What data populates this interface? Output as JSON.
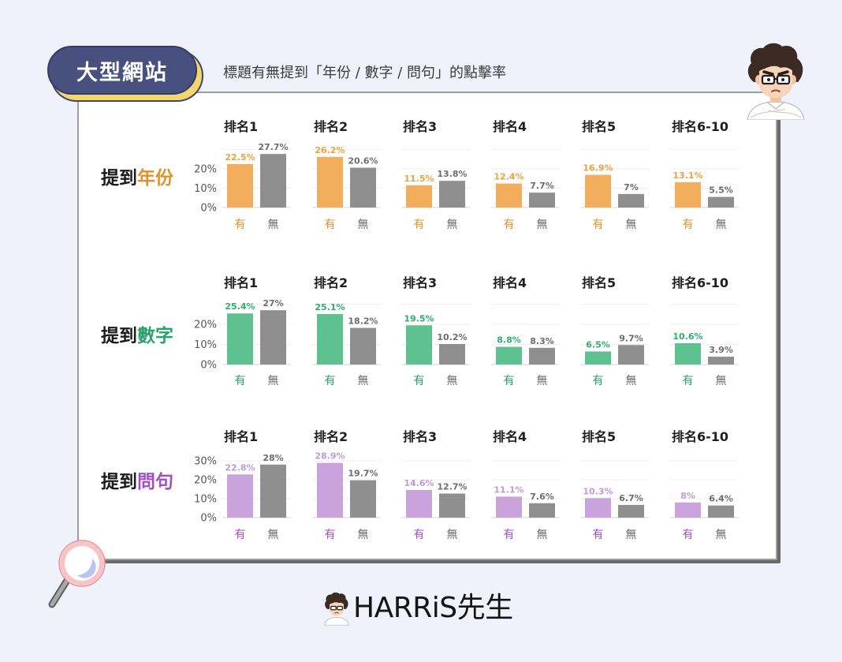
{
  "badge": {
    "text": "大型網站"
  },
  "subtitle": "標題有無提到「年份 / 數字 / 問句」的點擊率",
  "logo": {
    "text": "HARRiS先生"
  },
  "colors": {
    "background": "#f0f2fb",
    "badge": "#47507f",
    "badge_shadow": "#f4d66c",
    "no_bar": "#8f8f8f",
    "no_value_label": "#6d6d6d",
    "no_axis_label": "#6b6b6b"
  },
  "icons": {
    "avatar": "avatar-illustration",
    "magnifier": "magnifying-glass-icon"
  },
  "chart_data": [
    {
      "type": "bar",
      "row_label": {
        "prefix": "提到",
        "topic": "年份"
      },
      "accent": "#e0922b",
      "bar_color": "#f2ae5c",
      "value_label_color": "#eba13f",
      "unit": "%",
      "ylim": [
        0,
        30
      ],
      "yticks": [
        0,
        10,
        20
      ],
      "grid": true,
      "groups": [
        "排名1",
        "排名2",
        "排名3",
        "排名4",
        "排名5",
        "排名6-10"
      ],
      "series": [
        {
          "name": "有",
          "values": [
            22.5,
            26.2,
            11.5,
            12.4,
            16.9,
            13.1
          ]
        },
        {
          "name": "無",
          "values": [
            27.7,
            20.6,
            13.8,
            7.7,
            7,
            5.5
          ]
        }
      ]
    },
    {
      "type": "bar",
      "row_label": {
        "prefix": "提到",
        "topic": "數字"
      },
      "accent": "#2aa36a",
      "bar_color": "#5ec290",
      "value_label_color": "#2fae70",
      "unit": "%",
      "ylim": [
        0,
        30
      ],
      "yticks": [
        0,
        10,
        20
      ],
      "grid": true,
      "groups": [
        "排名1",
        "排名2",
        "排名3",
        "排名4",
        "排名5",
        "排名6-10"
      ],
      "series": [
        {
          "name": "有",
          "values": [
            25.4,
            25.1,
            19.5,
            8.8,
            6.5,
            10.6
          ]
        },
        {
          "name": "無",
          "values": [
            27,
            18.2,
            10.2,
            8.3,
            9.7,
            3.9
          ]
        }
      ]
    },
    {
      "type": "bar",
      "row_label": {
        "prefix": "提到",
        "topic": "問句"
      },
      "accent": "#a54dc5",
      "bar_color": "#caa3dd",
      "value_label_color": "#c09ad6",
      "unit": "%",
      "ylim": [
        0,
        30
      ],
      "yticks": [
        0,
        10,
        20,
        30
      ],
      "grid": true,
      "groups": [
        "排名1",
        "排名2",
        "排名3",
        "排名4",
        "排名5",
        "排名6-10"
      ],
      "series": [
        {
          "name": "有",
          "values": [
            22.8,
            28.9,
            14.6,
            11.1,
            10.3,
            8
          ]
        },
        {
          "name": "無",
          "values": [
            28,
            19.7,
            12.7,
            7.6,
            6.7,
            6.4
          ]
        }
      ]
    }
  ]
}
